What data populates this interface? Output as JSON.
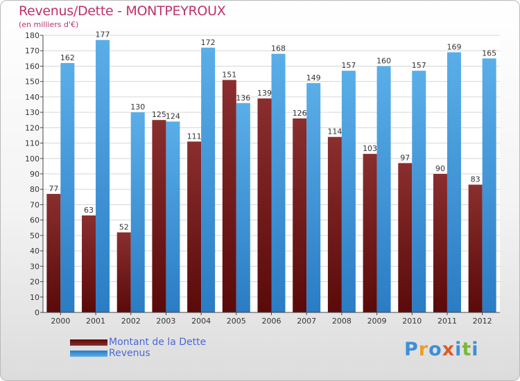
{
  "title": "Revenus/Dette - MONTPEYROUX",
  "subtitle": "(en milliers d'€)",
  "logo": "Proxiti",
  "chart_data": {
    "type": "bar",
    "title": "Revenus/Dette - MONTPEYROUX",
    "subtitle": "(en milliers d'€)",
    "categories": [
      "2000",
      "2001",
      "2002",
      "2003",
      "2004",
      "2005",
      "2006",
      "2007",
      "2008",
      "2009",
      "2010",
      "2011",
      "2012"
    ],
    "series": [
      {
        "name": "Montant de la Dette",
        "color": "#7a1a1a",
        "values": [
          77,
          63,
          52,
          125,
          111,
          151,
          139,
          126,
          114,
          103,
          97,
          90,
          83
        ]
      },
      {
        "name": "Revenus",
        "color": "#3d95dc",
        "values": [
          162,
          177,
          130,
          124,
          172,
          136,
          168,
          149,
          157,
          160,
          157,
          169,
          165
        ]
      }
    ],
    "ylim": [
      0,
      180
    ],
    "yticks": [
      0,
      10,
      20,
      30,
      40,
      50,
      60,
      70,
      80,
      90,
      100,
      110,
      120,
      130,
      140,
      150,
      160,
      170,
      180
    ],
    "grid": true,
    "legend_position": "bottom-left",
    "xlabel": "",
    "ylabel": ""
  },
  "colors": {
    "title": "#c0306c",
    "legend_text": "#4a67d8",
    "debt_dark": "#5a0a0a",
    "debt_light": "#8a2e2e",
    "rev_dark": "#2a7cc4",
    "rev_light": "#5aaee8"
  }
}
